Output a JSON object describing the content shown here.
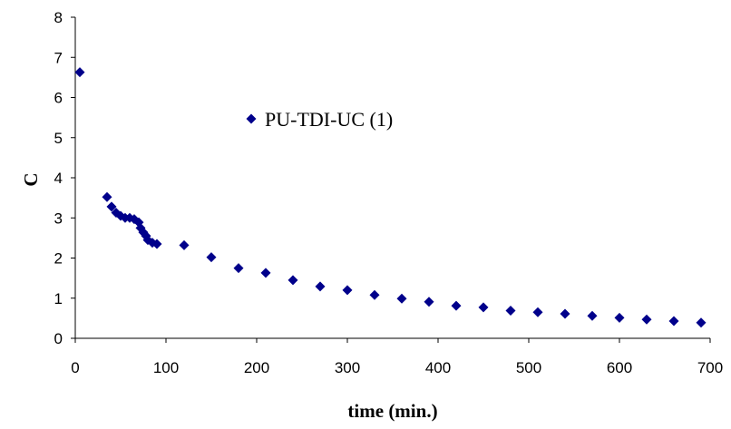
{
  "chart_data": {
    "type": "scatter",
    "title": "",
    "xlabel": "time (min.)",
    "ylabel": "C",
    "xlim": [
      0,
      700
    ],
    "ylim": [
      0,
      8
    ],
    "xticks": [
      0,
      100,
      200,
      300,
      400,
      500,
      600,
      700
    ],
    "yticks": [
      0,
      1,
      2,
      3,
      4,
      5,
      6,
      7,
      8
    ],
    "grid": false,
    "legend": "inside upper-middle",
    "marker": "diamond",
    "color": "#00008B",
    "series": [
      {
        "name": "PU-TDI-UC (1)",
        "x": [
          5,
          35,
          40,
          45,
          50,
          55,
          60,
          65,
          70,
          72,
          75,
          78,
          80,
          85,
          90,
          120,
          150,
          180,
          210,
          240,
          270,
          300,
          330,
          360,
          390,
          420,
          450,
          480,
          510,
          540,
          570,
          600,
          630,
          660,
          690
        ],
        "y": [
          6.63,
          3.52,
          3.28,
          3.13,
          3.05,
          3.0,
          3.0,
          2.97,
          2.89,
          2.75,
          2.64,
          2.55,
          2.45,
          2.38,
          2.35,
          2.32,
          2.02,
          1.75,
          1.63,
          1.45,
          1.29,
          1.2,
          1.08,
          0.99,
          0.91,
          0.81,
          0.77,
          0.69,
          0.65,
          0.61,
          0.56,
          0.51,
          0.47,
          0.43,
          0.39
        ]
      }
    ]
  }
}
